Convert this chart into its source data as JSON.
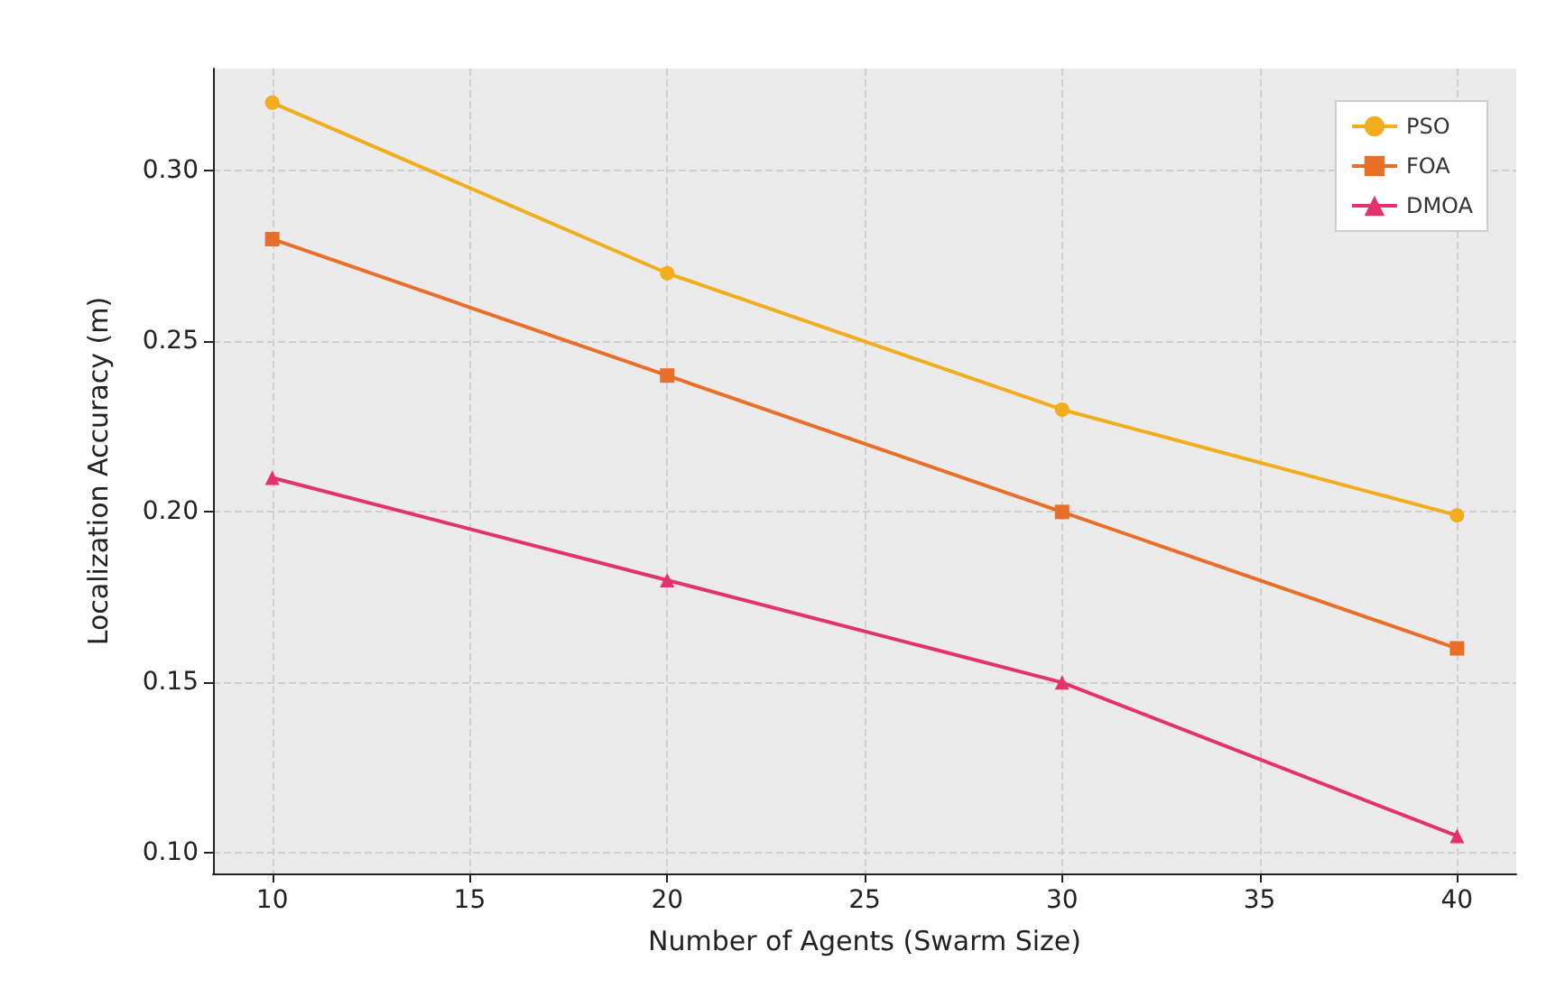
{
  "chart_data": {
    "type": "line",
    "xlabel": "Number of Agents (Swarm Size)",
    "ylabel": "Localization Accuracy (m)",
    "x": [
      10,
      20,
      30,
      40
    ],
    "series": [
      {
        "name": "PSO",
        "color": "#f2ad1c",
        "marker": "circle",
        "values": [
          0.32,
          0.27,
          0.23,
          0.199
        ]
      },
      {
        "name": "FOA",
        "color": "#e86f2a",
        "marker": "square",
        "values": [
          0.28,
          0.24,
          0.2,
          0.16
        ]
      },
      {
        "name": "DMOA",
        "color": "#e2336b",
        "marker": "triangle",
        "values": [
          0.21,
          0.18,
          0.15,
          0.105
        ]
      }
    ],
    "xlim": [
      8.5,
      41.5
    ],
    "xticks": [
      10,
      15,
      20,
      25,
      30,
      35,
      40
    ],
    "ylim": [
      0.094,
      0.33
    ],
    "yticks": [
      {
        "value": 0.1,
        "label": "0.10"
      },
      0.15,
      {
        "value": 0.2,
        "label": "0.20"
      },
      0.25,
      {
        "value": 0.3,
        "label": "0.30"
      }
    ],
    "grid": true,
    "legend": "top right",
    "line_style": "solid"
  }
}
